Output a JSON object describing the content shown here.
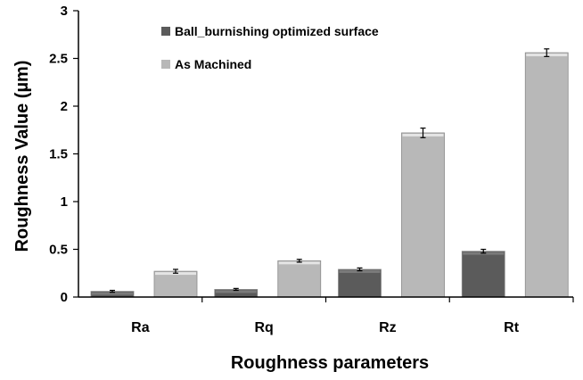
{
  "chart_data": {
    "type": "bar",
    "title": "",
    "xlabel": "Roughness parameters",
    "ylabel": "Roughness Value (µm)",
    "categories": [
      "Ra",
      "Rq",
      "Rz",
      "Rt"
    ],
    "ylim": [
      0,
      3
    ],
    "yticks": [
      0,
      0.5,
      1,
      1.5,
      2,
      2.5,
      3
    ],
    "ytick_labels": [
      "0",
      "0.5",
      "1",
      "1.5",
      "2",
      "2.5",
      "3"
    ],
    "grid": false,
    "legend_position": "top-center",
    "series": [
      {
        "name": "Ball_burnishing optimized surface",
        "values": [
          0.06,
          0.08,
          0.29,
          0.48
        ],
        "errors": [
          0.01,
          0.01,
          0.015,
          0.02
        ],
        "color": "#5b5b5b"
      },
      {
        "name": "As Machined",
        "values": [
          0.27,
          0.38,
          1.72,
          2.56
        ],
        "errors": [
          0.02,
          0.015,
          0.05,
          0.04
        ],
        "color": "#b8b8b8"
      }
    ]
  }
}
